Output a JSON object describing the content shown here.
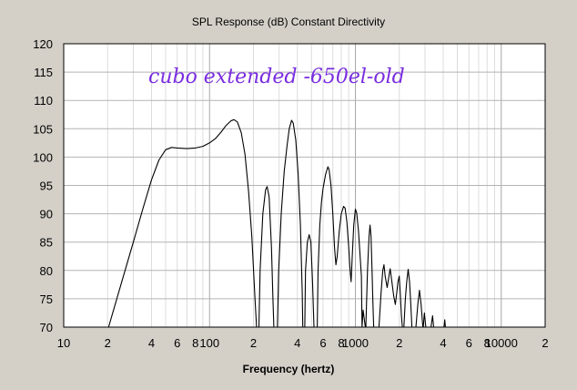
{
  "chart_data": {
    "type": "line",
    "title": "SPL Response (dB)   Constant Directivity",
    "xlabel": "Frequency (hertz)",
    "ylabel": "",
    "annotation": "cubo extended -650el-old",
    "x_scale": "log",
    "xlim": [
      10,
      20000
    ],
    "ylim": [
      70,
      120
    ],
    "y_ticks": [
      70,
      75,
      80,
      85,
      90,
      95,
      100,
      105,
      110,
      115,
      120
    ],
    "x_ticks": [
      {
        "value": 10,
        "label": "10"
      },
      {
        "value": 20,
        "label": "2"
      },
      {
        "value": 40,
        "label": "4"
      },
      {
        "value": 60,
        "label": "6"
      },
      {
        "value": 80,
        "label": "8"
      },
      {
        "value": 100,
        "label": "100"
      },
      {
        "value": 200,
        "label": "2"
      },
      {
        "value": 400,
        "label": "4"
      },
      {
        "value": 600,
        "label": "6"
      },
      {
        "value": 800,
        "label": "8"
      },
      {
        "value": 1000,
        "label": "1000"
      },
      {
        "value": 2000,
        "label": "2"
      },
      {
        "value": 4000,
        "label": "4"
      },
      {
        "value": 6000,
        "label": "6"
      },
      {
        "value": 8000,
        "label": "8"
      },
      {
        "value": 10000,
        "label": "10000"
      },
      {
        "value": 20000,
        "label": "2"
      }
    ],
    "grid": true,
    "series": [
      {
        "name": "",
        "color": "#000000",
        "points": [
          [
            20.3,
            70
          ],
          [
            25,
            78
          ],
          [
            30,
            85
          ],
          [
            35,
            91
          ],
          [
            40,
            96
          ],
          [
            45,
            99.5
          ],
          [
            50,
            101.3
          ],
          [
            55,
            101.7
          ],
          [
            60,
            101.6
          ],
          [
            70,
            101.5
          ],
          [
            80,
            101.6
          ],
          [
            90,
            101.9
          ],
          [
            100,
            102.5
          ],
          [
            110,
            103.3
          ],
          [
            120,
            104.4
          ],
          [
            130,
            105.6
          ],
          [
            140,
            106.4
          ],
          [
            147,
            106.6
          ],
          [
            155,
            106.2
          ],
          [
            165,
            104.3
          ],
          [
            175,
            100.5
          ],
          [
            185,
            94
          ],
          [
            195,
            86
          ],
          [
            205,
            75
          ],
          [
            210,
            70
          ],
          [
            218,
            70
          ],
          [
            222,
            80
          ],
          [
            232,
            90
          ],
          [
            242,
            94.2
          ],
          [
            248,
            94.8
          ],
          [
            256,
            93
          ],
          [
            266,
            84
          ],
          [
            272,
            75
          ],
          [
            276,
            70
          ],
          [
            292,
            70
          ],
          [
            298,
            80
          ],
          [
            310,
            90
          ],
          [
            325,
            97.5
          ],
          [
            340,
            102
          ],
          [
            352,
            105
          ],
          [
            365,
            106.5
          ],
          [
            375,
            106
          ],
          [
            390,
            103
          ],
          [
            405,
            97
          ],
          [
            420,
            88
          ],
          [
            432,
            76
          ],
          [
            436,
            70
          ],
          [
            450,
            70
          ],
          [
            455,
            80
          ],
          [
            468,
            85
          ],
          [
            482,
            86.3
          ],
          [
            495,
            85
          ],
          [
            508,
            78
          ],
          [
            520,
            70
          ],
          [
            548,
            70
          ],
          [
            555,
            80
          ],
          [
            570,
            88
          ],
          [
            585,
            92
          ],
          [
            600,
            94.5
          ],
          [
            625,
            97
          ],
          [
            648,
            98.3
          ],
          [
            660,
            97.8
          ],
          [
            680,
            95
          ],
          [
            700,
            90
          ],
          [
            720,
            84
          ],
          [
            735,
            81
          ],
          [
            750,
            82.5
          ],
          [
            775,
            87
          ],
          [
            800,
            90
          ],
          [
            830,
            91.3
          ],
          [
            850,
            91
          ],
          [
            875,
            88.5
          ],
          [
            900,
            84
          ],
          [
            920,
            80
          ],
          [
            935,
            78
          ],
          [
            950,
            82
          ],
          [
            975,
            88
          ],
          [
            1000,
            90.8
          ],
          [
            1020,
            90.2
          ],
          [
            1050,
            87
          ],
          [
            1080,
            82
          ],
          [
            1100,
            79
          ],
          [
            1110,
            70
          ],
          [
            1110,
            70
          ],
          [
            1130,
            73
          ],
          [
            1150,
            71.5
          ],
          [
            1170,
            70
          ],
          [
            1180,
            70
          ],
          [
            1210,
            80
          ],
          [
            1240,
            86
          ],
          [
            1260,
            88
          ],
          [
            1280,
            86
          ],
          [
            1300,
            80
          ],
          [
            1320,
            74
          ],
          [
            1335,
            70
          ],
          [
            1450,
            70
          ],
          [
            1500,
            76
          ],
          [
            1540,
            80
          ],
          [
            1570,
            81
          ],
          [
            1600,
            79
          ],
          [
            1650,
            77
          ],
          [
            1700,
            79
          ],
          [
            1730,
            80.3
          ],
          [
            1780,
            78
          ],
          [
            1830,
            75.5
          ],
          [
            1880,
            74
          ],
          [
            1920,
            76
          ],
          [
            1960,
            78
          ],
          [
            2000,
            79
          ],
          [
            2030,
            76
          ],
          [
            2070,
            72
          ],
          [
            2100,
            70
          ],
          [
            2150,
            70
          ],
          [
            2200,
            75
          ],
          [
            2250,
            78
          ],
          [
            2300,
            80.2
          ],
          [
            2350,
            78
          ],
          [
            2400,
            74
          ],
          [
            2440,
            70
          ],
          [
            2600,
            70
          ],
          [
            2680,
            74
          ],
          [
            2750,
            76.5
          ],
          [
            2820,
            74
          ],
          [
            2900,
            70
          ],
          [
            2920,
            70
          ],
          [
            2970,
            72.5
          ],
          [
            3040,
            70
          ],
          [
            3300,
            70
          ],
          [
            3380,
            72
          ],
          [
            3440,
            70
          ],
          [
            4050,
            70
          ],
          [
            4100,
            71.3
          ],
          [
            4140,
            70
          ]
        ]
      }
    ]
  }
}
